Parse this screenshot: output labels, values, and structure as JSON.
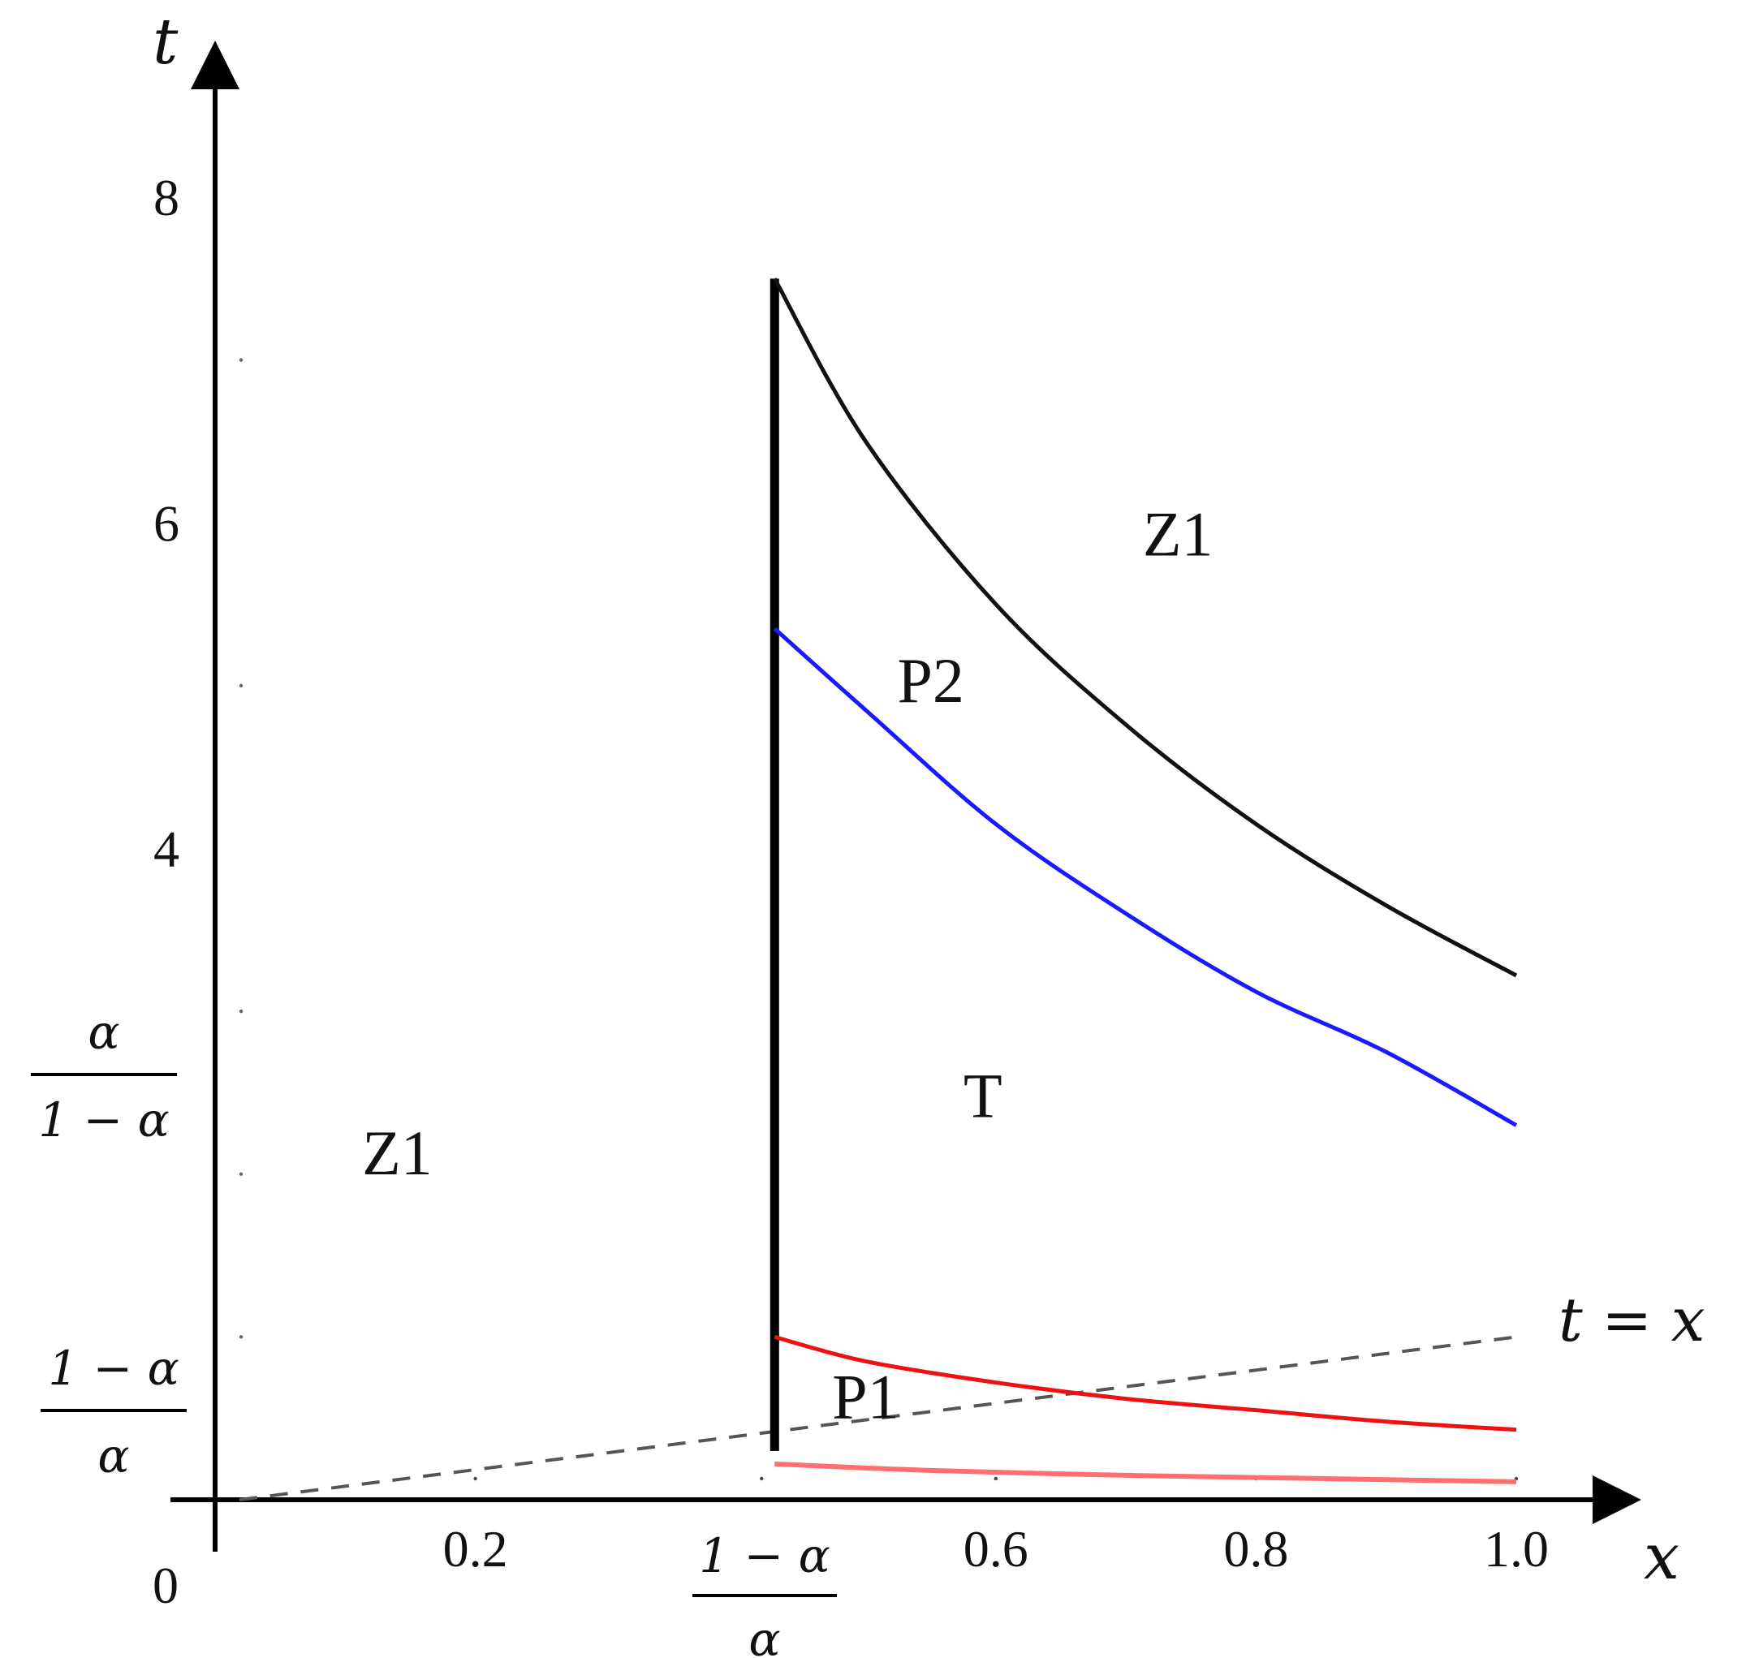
{
  "chart_data": {
    "type": "line",
    "xlabel": "x",
    "ylabel": "t",
    "xlim": [
      0,
      1.1
    ],
    "ylim": [
      0,
      9.1
    ],
    "x_tick_labels": [
      {
        "value": 0.2,
        "label": "0.2"
      },
      {
        "value": 0.6,
        "label": "0.6"
      },
      {
        "value": 0.8,
        "label": "0.8"
      },
      {
        "value": 1.0,
        "label": "1.0"
      }
    ],
    "x_special_tick": {
      "value": 0.42,
      "numerator": "1 − α",
      "denominator": "α"
    },
    "y_tick_labels": [
      {
        "value": 4,
        "label": "4"
      },
      {
        "value": 6,
        "label": "6"
      },
      {
        "value": 8,
        "label": "8"
      }
    ],
    "y_special_ticks": [
      {
        "value": 2.4,
        "numerator": "α",
        "denominator": "1 − α"
      },
      {
        "value": 0.42,
        "numerator": "1 − α",
        "denominator": "α"
      }
    ],
    "origin_label": "0",
    "vertical_line": {
      "x": 0.43,
      "t_from": 0.3,
      "t_to": 7.5
    },
    "series": [
      {
        "color": "#111111",
        "x": [
          0.43,
          0.5,
          0.6,
          0.7,
          0.8,
          0.9,
          1.0
        ],
        "y": [
          7.5,
          6.5,
          5.5,
          4.76,
          4.15,
          3.65,
          3.22
        ]
      },
      {
        "color": "#1a1aff",
        "x": [
          0.43,
          0.5,
          0.6,
          0.7,
          0.8,
          0.9,
          1.0
        ],
        "y": [
          5.35,
          4.85,
          4.15,
          3.6,
          3.12,
          2.75,
          2.3
        ]
      },
      {
        "color": "#ee1111",
        "x": [
          0.43,
          0.5,
          0.6,
          0.7,
          0.8,
          0.9,
          1.0
        ],
        "y": [
          1.0,
          0.85,
          0.72,
          0.62,
          0.55,
          0.48,
          0.43
        ]
      },
      {
        "color": "#ff6f6f",
        "x": [
          0.43,
          0.55,
          0.7,
          0.85,
          1.0
        ],
        "y": [
          0.22,
          0.18,
          0.15,
          0.13,
          0.11
        ]
      }
    ],
    "reference_line": {
      "label": "t = x",
      "style": "dashed",
      "color": "#555555",
      "x": [
        0,
        1.0
      ],
      "y": [
        0,
        1.0
      ]
    },
    "region_labels": [
      {
        "text": "Z1",
        "x": 0.74,
        "y": 5.8
      },
      {
        "text": "P2",
        "x": 0.55,
        "y": 4.9
      },
      {
        "text": "T",
        "x": 0.59,
        "y": 2.35
      },
      {
        "text": "Z1",
        "x": 0.14,
        "y": 2.0
      },
      {
        "text": "P1",
        "x": 0.5,
        "y": 0.5
      }
    ],
    "grid": false
  }
}
